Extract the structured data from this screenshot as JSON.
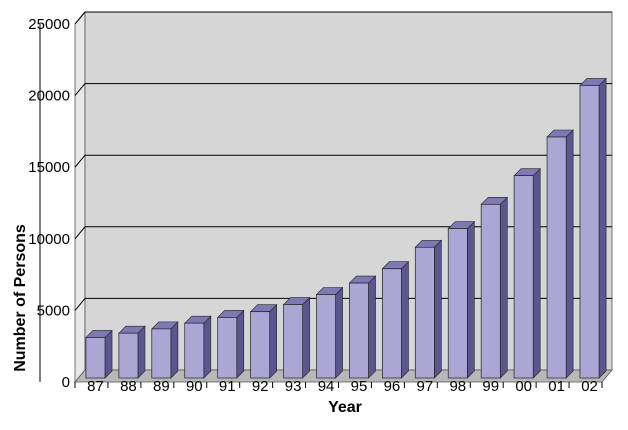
{
  "chart_data": {
    "type": "bar",
    "title": "",
    "xlabel": "Year",
    "ylabel": "Number of Persons",
    "categories": [
      "87",
      "88",
      "89",
      "90",
      "91",
      "92",
      "93",
      "94",
      "95",
      "96",
      "97",
      "98",
      "99",
      "00",
      "01",
      "02"
    ],
    "values": [
      2900,
      3200,
      3500,
      3900,
      4300,
      4700,
      5200,
      5900,
      6700,
      7700,
      9200,
      10500,
      12200,
      14200,
      16900,
      20500
    ],
    "ylim": [
      0,
      25000
    ],
    "yticks": [
      "0",
      "5000",
      "10000",
      "15000",
      "20000",
      "25000"
    ],
    "grid": true,
    "legend": "none",
    "colors": {
      "bar_front": "#aba6d4",
      "bar_top": "#7e79b4",
      "bar_side": "#5b5690",
      "plot_back": "#d6d6d6",
      "plot_floor": "#b8b8b8",
      "plot_wall": "#e8e8e8",
      "grid": "#000000"
    }
  }
}
